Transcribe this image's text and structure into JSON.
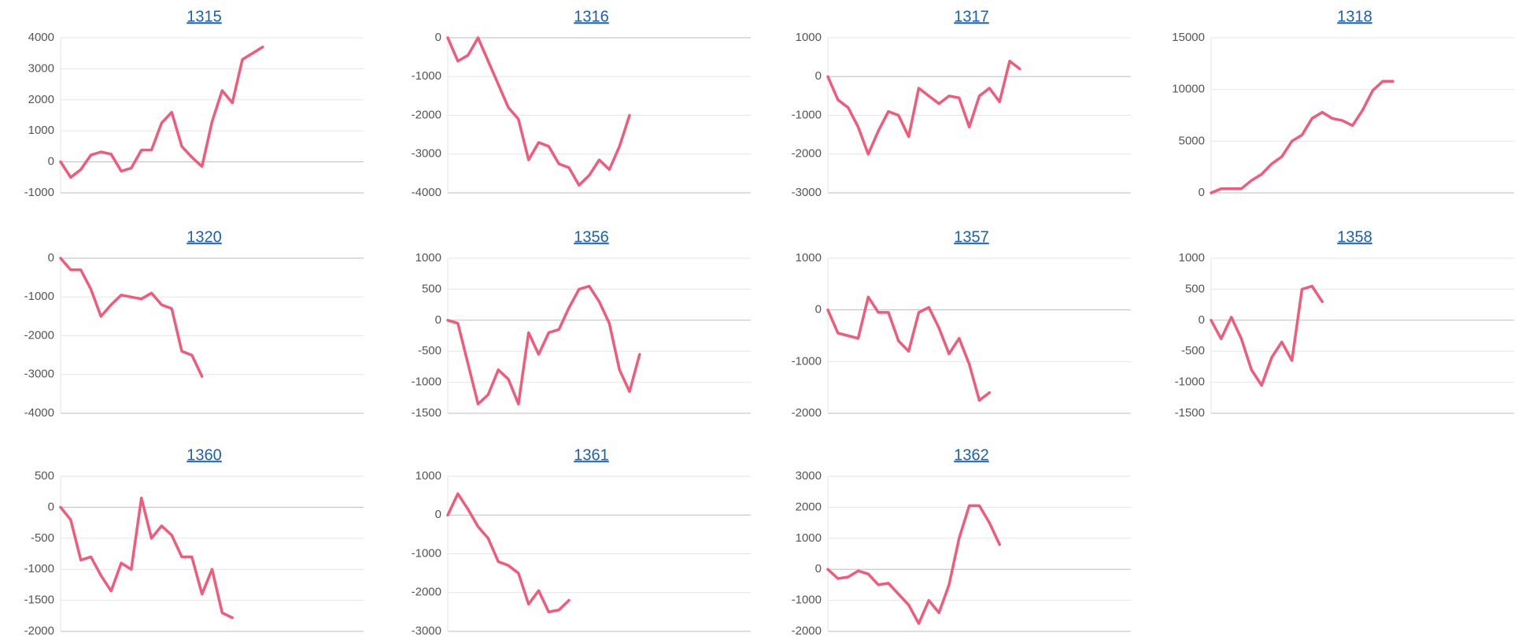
{
  "chart_data": [
    {
      "type": "line",
      "title": "1315",
      "color": "#f25a7a",
      "grid": true,
      "ylim": [
        -1000,
        4000
      ],
      "yticks": [
        -1000,
        0,
        1000,
        2000,
        3000,
        4000
      ],
      "values": [
        0,
        -500,
        -250,
        220,
        320,
        250,
        -300,
        -200,
        380,
        380,
        1250,
        1600,
        500,
        150,
        -150,
        1300,
        2300,
        1900,
        3300,
        3500,
        3700
      ]
    },
    {
      "type": "line",
      "title": "1316",
      "color": "#f25a7a",
      "grid": true,
      "ylim": [
        -4000,
        0
      ],
      "yticks": [
        -4000,
        -3000,
        -2000,
        -1000,
        0
      ],
      "values": [
        0,
        -600,
        -450,
        0,
        -600,
        -1200,
        -1800,
        -2100,
        -3150,
        -2700,
        -2800,
        -3250,
        -3350,
        -3800,
        -3550,
        -3150,
        -3400,
        -2800,
        -2000
      ]
    },
    {
      "type": "line",
      "title": "1317",
      "color": "#f25a7a",
      "grid": true,
      "ylim": [
        -3000,
        1000
      ],
      "yticks": [
        -3000,
        -2000,
        -1000,
        0,
        1000
      ],
      "values": [
        0,
        -600,
        -800,
        -1300,
        -2000,
        -1400,
        -900,
        -1000,
        -1550,
        -300,
        -500,
        -700,
        -500,
        -550,
        -1300,
        -500,
        -300,
        -650,
        400,
        200
      ]
    },
    {
      "type": "line",
      "title": "1318",
      "color": "#f25a7a",
      "grid": true,
      "ylim": [
        0,
        15000
      ],
      "yticks": [
        0,
        5000,
        10000,
        15000
      ],
      "values": [
        0,
        400,
        400,
        400,
        1200,
        1800,
        2800,
        3500,
        5000,
        5600,
        7200,
        7800,
        7200,
        7000,
        6500,
        8000,
        9900,
        10800,
        10800
      ]
    },
    {
      "type": "line",
      "title": "1320",
      "color": "#f25a7a",
      "grid": true,
      "ylim": [
        -4000,
        0
      ],
      "yticks": [
        -4000,
        -3000,
        -2000,
        -1000,
        0
      ],
      "values": [
        0,
        -300,
        -300,
        -800,
        -1500,
        -1200,
        -950,
        -1000,
        -1050,
        -900,
        -1200,
        -1300,
        -2400,
        -2500,
        -3050
      ]
    },
    {
      "type": "line",
      "title": "1356",
      "color": "#f25a7a",
      "grid": true,
      "ylim": [
        -1500,
        1000
      ],
      "yticks": [
        -1500,
        -1000,
        -500,
        0,
        500,
        1000
      ],
      "values": [
        0,
        -50,
        -700,
        -1350,
        -1200,
        -800,
        -950,
        -1350,
        -200,
        -550,
        -200,
        -150,
        200,
        500,
        550,
        300,
        -50,
        -800,
        -1150,
        -550
      ]
    },
    {
      "type": "line",
      "title": "1357",
      "color": "#f25a7a",
      "grid": true,
      "ylim": [
        -2000,
        1000
      ],
      "yticks": [
        -2000,
        -1000,
        0,
        1000
      ],
      "values": [
        0,
        -450,
        -500,
        -550,
        250,
        -50,
        -50,
        -600,
        -800,
        -50,
        50,
        -350,
        -850,
        -550,
        -1050,
        -1750,
        -1600
      ]
    },
    {
      "type": "line",
      "title": "1358",
      "color": "#f25a7a",
      "grid": true,
      "ylim": [
        -1500,
        1000
      ],
      "yticks": [
        -1500,
        -1000,
        -500,
        0,
        500,
        1000
      ],
      "values": [
        0,
        -300,
        50,
        -300,
        -800,
        -1050,
        -600,
        -350,
        -650,
        500,
        550,
        300
      ]
    },
    {
      "type": "line",
      "title": "1360",
      "color": "#f25a7a",
      "grid": true,
      "ylim": [
        -2000,
        500
      ],
      "yticks": [
        -2000,
        -1500,
        -1000,
        -500,
        0,
        500
      ],
      "values": [
        0,
        -200,
        -850,
        -800,
        -1100,
        -1350,
        -900,
        -1000,
        150,
        -500,
        -300,
        -450,
        -800,
        -800,
        -1400,
        -1000,
        -1700,
        -1780
      ]
    },
    {
      "type": "line",
      "title": "1361",
      "color": "#f25a7a",
      "grid": true,
      "ylim": [
        -3000,
        1000
      ],
      "yticks": [
        -3000,
        -2000,
        -1000,
        0,
        1000
      ],
      "values": [
        0,
        550,
        150,
        -300,
        -600,
        -1200,
        -1300,
        -1500,
        -2300,
        -1950,
        -2500,
        -2450,
        -2200
      ]
    },
    {
      "type": "line",
      "title": "1362",
      "color": "#f25a7a",
      "grid": true,
      "ylim": [
        -2000,
        3000
      ],
      "yticks": [
        -2000,
        -1000,
        0,
        1000,
        2000,
        3000
      ],
      "values": [
        0,
        -300,
        -250,
        -50,
        -150,
        -500,
        -450,
        -800,
        -1150,
        -1750,
        -1000,
        -1400,
        -500,
        1000,
        2050,
        2050,
        1500,
        800
      ]
    }
  ]
}
